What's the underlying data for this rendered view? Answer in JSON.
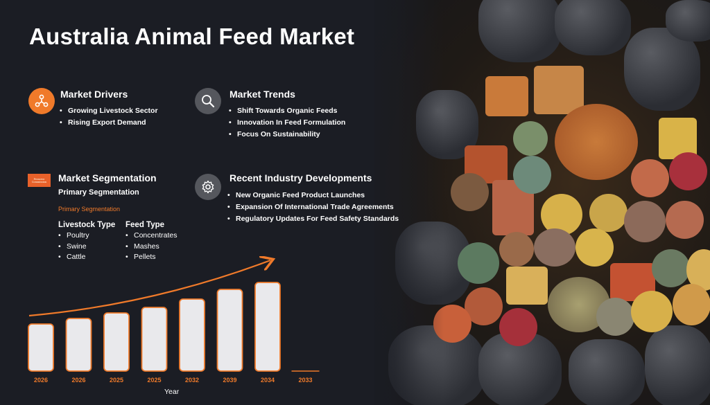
{
  "title": "Australia Animal Feed Market",
  "drivers": {
    "heading": "Market Drivers",
    "icon": "network-icon",
    "items": [
      "Growing Livestock Sector",
      "Rising Export Demand"
    ]
  },
  "trends": {
    "heading": "Market Trends",
    "icon": "search-icon",
    "items": [
      "Shift Towards Organic Feeds",
      "Innovation In Feed Formulation",
      "Focus On Sustainability"
    ]
  },
  "segmentation": {
    "heading": "Market Segmentation",
    "logo_lines": [
      "Preserve",
      "Commission"
    ],
    "primary_label": "Primary Segmentation",
    "primary_sublabel": "Primary Segmentation",
    "columns": [
      {
        "heading": "Livestock Type",
        "items": [
          "Poultry",
          "Swine",
          "Cattle"
        ]
      },
      {
        "heading": "Feed Type",
        "items": [
          "Concentrates",
          "Mashes",
          "Pellets"
        ]
      }
    ]
  },
  "developments": {
    "heading": "Recent Industry Developments",
    "icon": "gear-icon",
    "items": [
      "New Organic Feed Product Launches",
      "Expansion Of International Trade Agreements",
      "Regulatory Updates For Feed Safety Standards"
    ]
  },
  "chart_data": {
    "type": "bar",
    "categories": [
      "2026",
      "2026",
      "2025",
      "2025",
      "2032",
      "2039",
      "2034",
      "2033"
    ],
    "values": [
      3.4,
      3.8,
      4.2,
      4.6,
      5.2,
      5.9,
      6.4,
      0
    ],
    "xlabel": "Year",
    "ylabel": "",
    "ylim": [
      0,
      7
    ],
    "grid": false,
    "colors": {
      "bar_fill": "#e9e9ec",
      "bar_stroke": "#f07a2a",
      "trend": "#f07a2a"
    }
  }
}
